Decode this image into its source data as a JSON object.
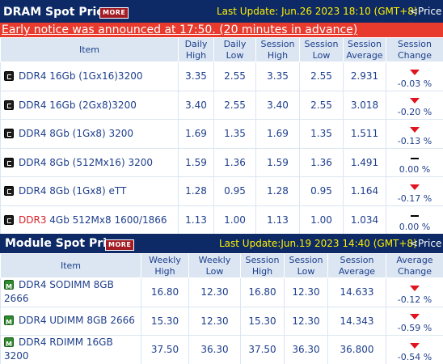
{
  "dram": {
    "title": "DRAM Spot Price",
    "more_label": "MORE",
    "last_update": "Last Update: Jun.26 2023 18:10 (GMT+8)",
    "price_link": "<Price I",
    "notice": "Early notice was announced at 17:50. (20 minutes in advance)",
    "headers": [
      "Item",
      "Daily High",
      "Daily Low",
      "Session High",
      "Session Low",
      "Session Average",
      "Session Change"
    ],
    "rows": [
      {
        "prefix": "DDR4",
        "name": " 16Gb (1Gx16)3200",
        "daily_high": "3.35",
        "daily_low": "2.55",
        "session_high": "3.35",
        "session_low": "2.55",
        "session_avg": "2.931",
        "change": "-0.03 %",
        "direction": "down"
      },
      {
        "prefix": "DDR4",
        "name": " 16Gb (2Gx8)3200",
        "daily_high": "3.40",
        "daily_low": "2.55",
        "session_high": "3.40",
        "session_low": "2.55",
        "session_avg": "3.018",
        "change": "-0.20 %",
        "direction": "down"
      },
      {
        "prefix": "DDR4",
        "name": " 8Gb (1Gx8) 3200",
        "daily_high": "1.69",
        "daily_low": "1.35",
        "session_high": "1.69",
        "session_low": "1.35",
        "session_avg": "1.511",
        "change": "-0.13 %",
        "direction": "down"
      },
      {
        "prefix": "DDR4",
        "name": " 8Gb (512Mx16) 3200",
        "daily_high": "1.59",
        "daily_low": "1.36",
        "session_high": "1.59",
        "session_low": "1.36",
        "session_avg": "1.491",
        "change": "0.00 %",
        "direction": "flat"
      },
      {
        "prefix": "DDR4",
        "name": " 8Gb (1Gx8) eTT",
        "daily_high": "1.28",
        "daily_low": "0.95",
        "session_high": "1.28",
        "session_low": "0.95",
        "session_avg": "1.164",
        "change": "-0.17 %",
        "direction": "down"
      },
      {
        "prefix": "DDR3",
        "name": " 4Gb 512Mx8 1600/1866",
        "daily_high": "1.13",
        "daily_low": "1.00",
        "session_high": "1.13",
        "session_low": "1.00",
        "session_avg": "1.034",
        "change": "0.00 %",
        "direction": "flat",
        "prefix_red": true
      }
    ]
  },
  "module": {
    "title": "Module Spot Price",
    "more_label": "MORE",
    "last_update": "Last Update:Jun.19 2023 14:40 (GMT+8)",
    "price_link": "<Price I",
    "headers": [
      "Item",
      "Weekly High",
      "Weekly Low",
      "Session High",
      "Session Low",
      "Session Average",
      "Average Change"
    ],
    "rows": [
      {
        "name": "DDR4 SODIMM 8GB 2666",
        "weekly_high": "16.80",
        "weekly_low": "12.30",
        "session_high": "16.80",
        "session_low": "12.30",
        "session_avg": "14.633",
        "change": "-0.12 %",
        "direction": "down"
      },
      {
        "name": "DDR4 UDIMM 8GB 2666",
        "weekly_high": "15.30",
        "weekly_low": "12.30",
        "session_high": "15.30",
        "session_low": "12.30",
        "session_avg": "14.343",
        "change": "-0.59 %",
        "direction": "down"
      },
      {
        "name": "DDR4 RDIMM 16GB 3200",
        "weekly_high": "37.50",
        "weekly_low": "36.30",
        "session_high": "37.50",
        "session_low": "36.30",
        "session_avg": "36.800",
        "change": "-0.54 %",
        "direction": "down"
      }
    ]
  }
}
